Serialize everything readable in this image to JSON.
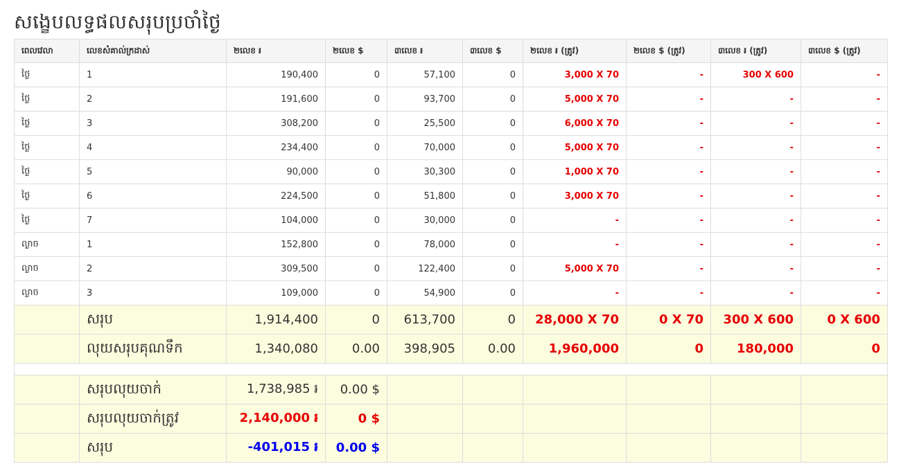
{
  "page": {
    "title": "សង្ខេបលទ្ធផលសរុបប្រចាំថ្ងៃ"
  },
  "table": {
    "headers": [
      "ពេលវេលា",
      "លេខសំគាល់ក្រដាស់",
      "២លេខ ៛",
      "២លេខ $",
      "៣លេខ ៛",
      "៣លេខ $",
      "២លេខ ៛ (ត្រូវ)",
      "២លេខ $ (ត្រូវ)",
      "៣លេខ ៛ (ត្រូវ)",
      "៣លេខ $ (ត្រូវ)"
    ],
    "rows": [
      [
        "ថ្ងៃ",
        "1",
        "190,400",
        "0",
        "57,100",
        "0",
        "3,000 X 70",
        "-",
        "300 X 600",
        "-"
      ],
      [
        "ថ្ងៃ",
        "2",
        "191,600",
        "0",
        "93,700",
        "0",
        "5,000 X 70",
        "-",
        "-",
        "-"
      ],
      [
        "ថ្ងៃ",
        "3",
        "308,200",
        "0",
        "25,500",
        "0",
        "6,000 X 70",
        "-",
        "-",
        "-"
      ],
      [
        "ថ្ងៃ",
        "4",
        "234,400",
        "0",
        "70,000",
        "0",
        "5,000 X 70",
        "-",
        "-",
        "-"
      ],
      [
        "ថ្ងៃ",
        "5",
        "90,000",
        "0",
        "30,300",
        "0",
        "1,000 X 70",
        "-",
        "-",
        "-"
      ],
      [
        "ថ្ងៃ",
        "6",
        "224,500",
        "0",
        "51,800",
        "0",
        "3,000 X 70",
        "-",
        "-",
        "-"
      ],
      [
        "ថ្ងៃ",
        "7",
        "104,000",
        "0",
        "30,000",
        "0",
        "-",
        "-",
        "-",
        "-"
      ],
      [
        "ល្ងាច",
        "1",
        "152,800",
        "0",
        "78,000",
        "0",
        "-",
        "-",
        "-",
        "-"
      ],
      [
        "ល្ងាច",
        "2",
        "309,500",
        "0",
        "122,400",
        "0",
        "5,000 X 70",
        "-",
        "-",
        "-"
      ],
      [
        "ល្ងាច",
        "3",
        "109,000",
        "0",
        "54,900",
        "0",
        "-",
        "-",
        "-",
        "-"
      ]
    ]
  },
  "totals": {
    "label": "សរុប",
    "values": [
      "1,914,400",
      "0",
      "613,700",
      "0",
      "28,000 X 70",
      "0 X 70",
      "300 X 600",
      "0 X 600"
    ]
  },
  "money": {
    "label": "លុយសរុបគុណទឹក",
    "values": [
      "1,340,080",
      "0.00",
      "398,905",
      "0.00",
      "1,960,000",
      "0",
      "180,000",
      "0"
    ]
  },
  "summary": {
    "paid_label": "សរុបលុយចាក់",
    "paid_riel": "1,738,985 ៛",
    "paid_usd": "0.00 $",
    "won_label": "សរុបលុយចាក់ត្រូវ",
    "won_riel": "2,140,000 ៛",
    "won_usd": "0 $",
    "net_label": "សរុប",
    "net_riel": "-401,015 ៛",
    "net_usd": "0.00 $"
  },
  "colors": {
    "highlight_bg": "#fcfcdf",
    "win_red": "#e60000",
    "net_blue": "#0000ee",
    "header_bg": "#f5f5f5",
    "border": "#dddddd"
  }
}
